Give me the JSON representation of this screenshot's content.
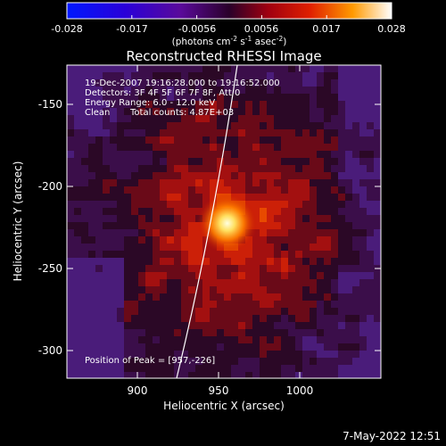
{
  "colorbar": {
    "ticks": [
      "-0.028",
      "-0.017",
      "-0.0056",
      "0.0056",
      "0.017",
      "0.028"
    ],
    "unit_parts": [
      "(photons cm",
      "-2",
      " s",
      "-1",
      " asec",
      "-2",
      ")"
    ]
  },
  "plot": {
    "title": "Reconstructed RHESSI Image",
    "xlabel": "Heliocentric X (arcsec)",
    "ylabel": "Heliocentric Y (arcsec)",
    "x_ticks": [
      "900",
      "950",
      "1000"
    ],
    "y_ticks": [
      "-150",
      "-200",
      "-250",
      "-300"
    ]
  },
  "info": {
    "time_range": "19-Dec-2007 19:16:28.000 to 19:16:52.000",
    "detectors": "Detectors: 3F 4F 5F 6F 7F 8F, Att 0",
    "energy_range": "Energy Range: 6.0 - 12.0 keV",
    "algorithm": "Clean",
    "total_counts": "Total counts: 4.87E+03",
    "peak_position": "Position of Peak = [957,-226]"
  },
  "footer": {
    "date": "7-May-2022 12:51"
  },
  "image": {
    "xlim": [
      862,
      1048
    ],
    "ylim": [
      -320,
      -130
    ],
    "peak": [
      957,
      -226
    ],
    "peak_value": 0.028
  }
}
